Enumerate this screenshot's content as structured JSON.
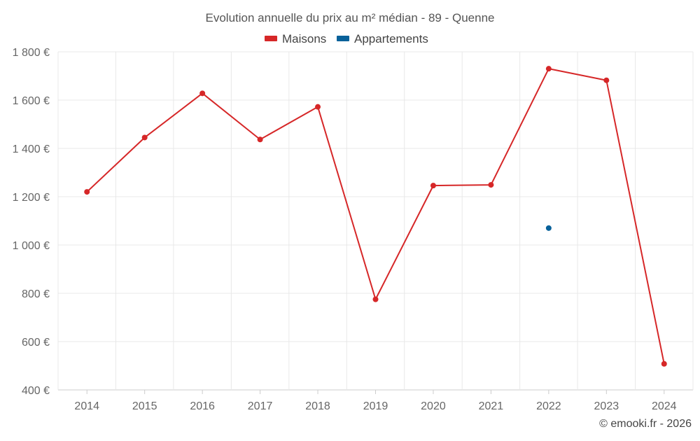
{
  "chart_data": {
    "type": "line",
    "title": "Evolution annuelle du prix au m² médian - 89 - Quenne",
    "categories": [
      "2014",
      "2015",
      "2016",
      "2017",
      "2018",
      "2019",
      "2020",
      "2021",
      "2022",
      "2023",
      "2024"
    ],
    "series": [
      {
        "name": "Maisons",
        "color": "#d62728",
        "values": [
          1220,
          1445,
          1628,
          1437,
          1572,
          775,
          1246,
          1249,
          1730,
          1682,
          508
        ]
      },
      {
        "name": "Appartements",
        "color": "#08619a",
        "values": [
          null,
          null,
          null,
          null,
          null,
          null,
          null,
          null,
          1070,
          null,
          null
        ]
      }
    ],
    "y_ticks": [
      {
        "value": 400,
        "label": "400 €"
      },
      {
        "value": 600,
        "label": "600 €"
      },
      {
        "value": 800,
        "label": "800 €"
      },
      {
        "value": 1000,
        "label": "1 000 €"
      },
      {
        "value": 1200,
        "label": "1 200 €"
      },
      {
        "value": 1400,
        "label": "1 400 €"
      },
      {
        "value": 1600,
        "label": "1 600 €"
      },
      {
        "value": 1800,
        "label": "1 800 €"
      }
    ],
    "ylim": [
      400,
      1800
    ],
    "xlabel": "",
    "ylabel": "",
    "grid": true,
    "legend_position": "top-center"
  },
  "credit": "© emooki.fr - 2026"
}
